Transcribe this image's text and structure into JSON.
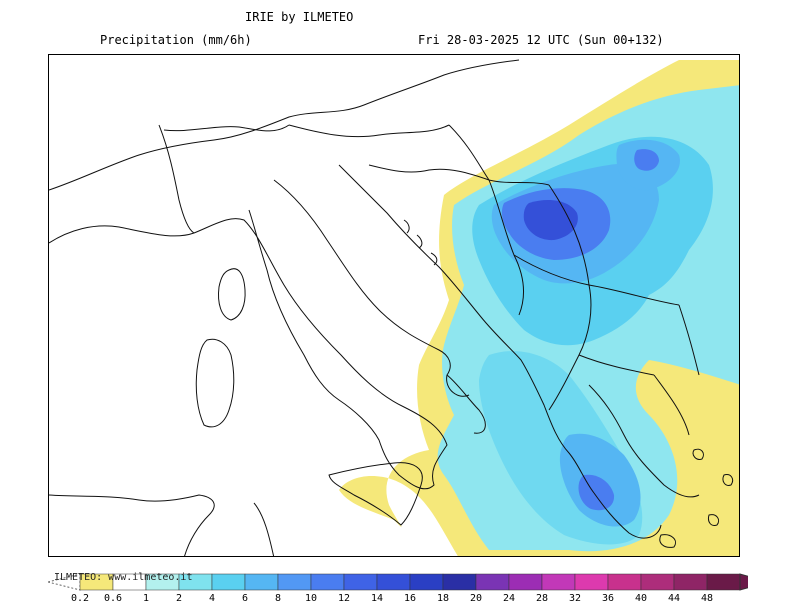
{
  "header": {
    "title": "IRIE by ILMETEO",
    "variable": "Precipitation (mm/6h)",
    "valid_time": "Fri 28-03-2025 12 UTC (Sun 00+132)"
  },
  "legend": {
    "credit": "ILMETEO: www.ilmeteo.it",
    "labels": [
      "0.2",
      "0.6",
      "1",
      "2",
      "4",
      "6",
      "8",
      "10",
      "12",
      "14",
      "16",
      "18",
      "20",
      "24",
      "28",
      "32",
      "36",
      "40",
      "44",
      "48"
    ],
    "colors": [
      "#f5e87a",
      "#ffffff",
      "#b3f1ee",
      "#7fe2ee",
      "#5ad0f0",
      "#55b6f3",
      "#5298f4",
      "#4a7df0",
      "#3f63e6",
      "#3450d8",
      "#2a3fc4",
      "#2a2fa5",
      "#7a34b4",
      "#9c2db4",
      "#c238b8",
      "#dd3aae",
      "#c8318d",
      "#ad2d7b",
      "#8f2566",
      "#6a1a48"
    ],
    "low_end_color": "#ffffff"
  },
  "map": {
    "precip_colors": {
      "yellow": "#f5e87a",
      "pale": "#b3f1ee",
      "cyan": "#7fe2ee",
      "light_blue": "#5ad0f0",
      "mid_blue": "#55b6f3",
      "blue": "#5298f4",
      "dark_blue": "#3f63e6",
      "deep_blue": "#2a3fc4"
    }
  }
}
